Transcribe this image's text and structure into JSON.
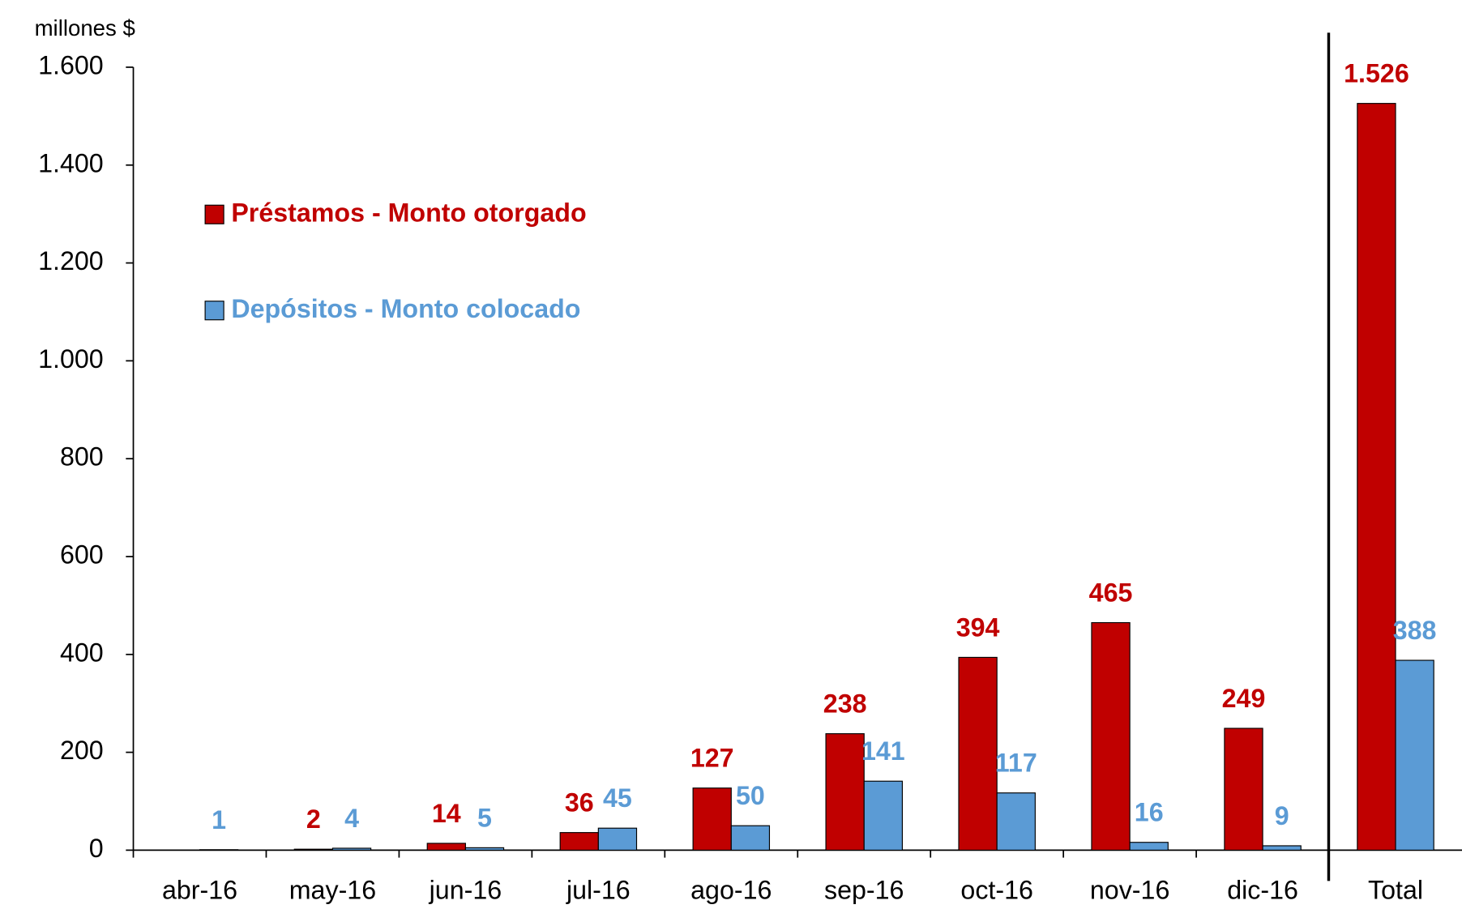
{
  "chart_data": {
    "type": "bar",
    "y_axis_label": "millones $",
    "categories": [
      "abr-16",
      "may-16",
      "jun-16",
      "jul-16",
      "ago-16",
      "sep-16",
      "oct-16",
      "nov-16",
      "dic-16",
      "Total"
    ],
    "series": [
      {
        "name": "Préstamos - Monto otorgado",
        "color": "#c00000",
        "values": [
          null,
          2,
          14,
          36,
          127,
          238,
          394,
          465,
          249,
          1526
        ],
        "value_labels": [
          null,
          "2",
          "14",
          "36",
          "127",
          "238",
          "394",
          "465",
          "249",
          "1.526"
        ]
      },
      {
        "name": "Depósitos - Monto colocado",
        "color": "#5b9bd5",
        "values": [
          1,
          4,
          5,
          45,
          50,
          141,
          117,
          16,
          9,
          388
        ]
      }
    ],
    "ylim": [
      0,
      1600
    ],
    "yticks": [
      0,
      200,
      400,
      600,
      800,
      {
        "value": 1000,
        "label": "1.000"
      },
      {
        "value": 1200,
        "label": "1.200"
      },
      {
        "value": 1400,
        "label": "1.400"
      },
      {
        "value": 1600,
        "label": "1.600"
      }
    ],
    "grid": false,
    "legend": "upper left"
  }
}
